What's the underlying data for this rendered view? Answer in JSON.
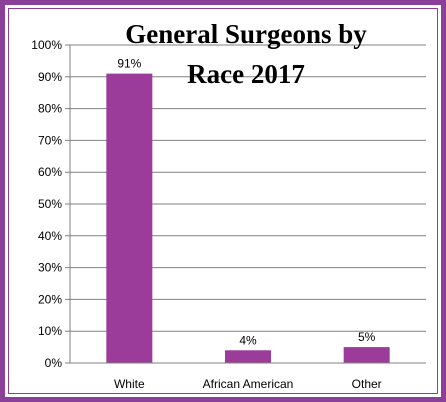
{
  "colors": {
    "frame": "#8a3f98",
    "bar": "#9b3c9b",
    "grid": "#808080"
  },
  "chart_data": {
    "type": "bar",
    "title_lines": [
      "General Surgeons by",
      "Race 2017"
    ],
    "categories": [
      "White",
      "African American",
      "Other"
    ],
    "values": [
      91,
      4,
      5
    ],
    "value_labels": [
      "91%",
      "4%",
      "5%"
    ],
    "xlabel": "",
    "ylabel": "",
    "ylim": [
      0,
      100
    ],
    "y_ticks": [
      0,
      10,
      20,
      30,
      40,
      50,
      60,
      70,
      80,
      90,
      100
    ],
    "y_tick_labels": [
      "0%",
      "10%",
      "20%",
      "30%",
      "40%",
      "50%",
      "60%",
      "70%",
      "80%",
      "90%",
      "100%"
    ],
    "grid": true,
    "legend": "none"
  }
}
